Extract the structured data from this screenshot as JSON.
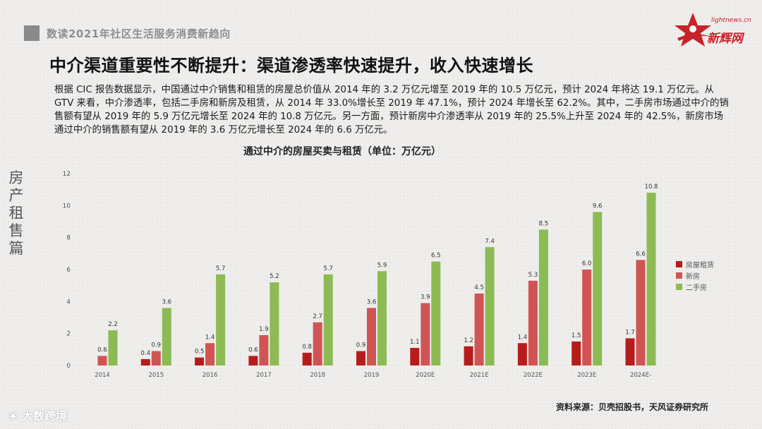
{
  "header": {
    "section_title": "数读2021年社区生活服务消费新趋向",
    "logo_url_text": "lightnews.cn",
    "logo_name": "新辉网",
    "headline": "中介渠道重要性不断提升：渠道渗透率快速提升，收入快速增长"
  },
  "paragraph": "根据 CIC 报告数据显示，中国通过中介销售和租赁的房屋总价值从 2014 年的 3.2 万亿元增至 2019 年的 10.5 万亿元，预计 2024 年将达 19.1 万亿元。从 GTV 来看，中介渗透率，包括二手房和新房及租赁，从 2014 年 33.0%增长至 2019 年 47.1%，预计 2024 年增长至 62.2%。其中，二手房市场通过中介的销售额有望从 2019 年的 5.9 万亿元增长至 2024 年的 10.8 万亿元。另一方面，预计新房中介渗透率从 2019 年的 25.5%上升至 2024 年的 42.5%，新房市场通过中介的销售额有望从 2019 年的 3.6 万亿元增长至 2024 年的 6.6 万亿元。",
  "side_label": "房产租售篇",
  "source": "资料来源：贝壳招股书，天风证券研究所",
  "watermark": "大数跨境",
  "colors": {
    "rental": "#b71c1c",
    "new_house": "#d05454",
    "second_hand": "#8cbb54",
    "logo_red": "#c8222a"
  },
  "chart_data": {
    "type": "bar",
    "title": "通过中介的房屋买卖与租赁（单位：万亿元）",
    "categories": [
      "2014",
      "2015",
      "2016",
      "2017",
      "2018",
      "2019",
      "2020E",
      "2021E",
      "2022E",
      "2023E",
      "2024E"
    ],
    "series": [
      {
        "name": "房屋租赁",
        "values": [
          null,
          0.4,
          0.5,
          0.6,
          0.8,
          0.9,
          1.1,
          1.2,
          1.4,
          1.5,
          1.7
        ]
      },
      {
        "name": "新房",
        "values": [
          0.6,
          0.9,
          1.4,
          1.9,
          2.7,
          3.6,
          3.9,
          4.5,
          5.3,
          6.0,
          6.6
        ]
      },
      {
        "name": "二手房",
        "values": [
          2.2,
          3.6,
          5.7,
          5.2,
          5.7,
          5.9,
          6.5,
          7.4,
          8.5,
          9.6,
          10.8
        ]
      }
    ],
    "value_labels": [
      [
        "",
        "0.4",
        "0.5",
        "0.6",
        "0.8",
        "0.9",
        "1.1",
        "1.2",
        "1.4",
        "1.5",
        "1.7"
      ],
      [
        "0.6",
        "0.9",
        "1.4",
        "1.9",
        "2.7",
        "3.6",
        "3.9",
        "4.5",
        "5.3",
        "6.0",
        "6.6"
      ],
      [
        "2.2",
        "3.6",
        "5.7",
        "5.2",
        "5.7",
        "5.9",
        "6.5",
        "7.4",
        "8.5",
        "9.6",
        "10.8"
      ]
    ],
    "category_labels": [
      "2014",
      "2015",
      "2016",
      "2017",
      "2018",
      "2019",
      "2020E",
      "2021E",
      "2022E",
      "2023E",
      "2024E-"
    ],
    "yticks": [
      "0",
      "2",
      "4",
      "6",
      "8",
      "10",
      "12"
    ],
    "ylim": [
      0,
      12
    ],
    "grid": false,
    "legend_position": "right"
  }
}
